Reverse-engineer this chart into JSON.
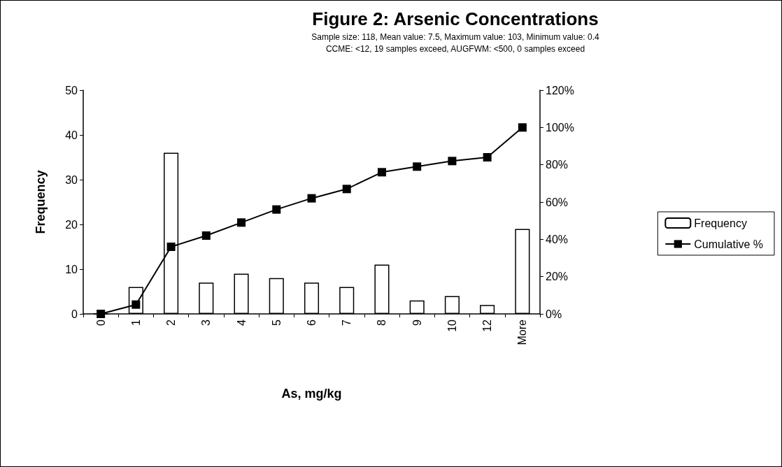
{
  "chart_data": {
    "type": "bar",
    "title": "Figure 2: Arsenic Concentrations",
    "subtitle": "Sample size: 118, Mean value: 7.5, Maximum value: 103, Minimum value: 0.4\nCCME: <12, 19 samples exceed, AUGFWM: <500, 0 samples exceed",
    "xlabel": "As, mg/kg",
    "ylabel": "Frequency",
    "categories": [
      "0",
      "1",
      "2",
      "3",
      "4",
      "5",
      "6",
      "7",
      "8",
      "9",
      "10",
      "12",
      "More"
    ],
    "series": [
      {
        "name": "Frequency",
        "color": "#ffffff",
        "values": [
          0,
          6,
          36,
          7,
          9,
          8,
          7,
          6,
          11,
          3,
          4,
          2,
          19
        ]
      },
      {
        "name": "Cumulative %",
        "type": "line",
        "axis": "y2",
        "color": "#000000",
        "marker": "square",
        "values": [
          0,
          5,
          36,
          42,
          49,
          56,
          62,
          67,
          76,
          79,
          82,
          84,
          100
        ]
      }
    ],
    "ylim": [
      0,
      50
    ],
    "yticks": [
      0,
      10,
      20,
      30,
      40,
      50
    ],
    "y2lim": [
      0,
      120
    ],
    "y2ticks": [
      {
        "value": 0,
        "label": "0%"
      },
      {
        "value": 20,
        "label": "20%"
      },
      {
        "value": 40,
        "label": "40%"
      },
      {
        "value": 60,
        "label": "60%"
      },
      {
        "value": 80,
        "label": "80%"
      },
      {
        "value": 100,
        "label": "100%"
      },
      {
        "value": 120,
        "label": "120%"
      }
    ],
    "grid": false,
    "legend": "right",
    "line_style": "solid"
  }
}
